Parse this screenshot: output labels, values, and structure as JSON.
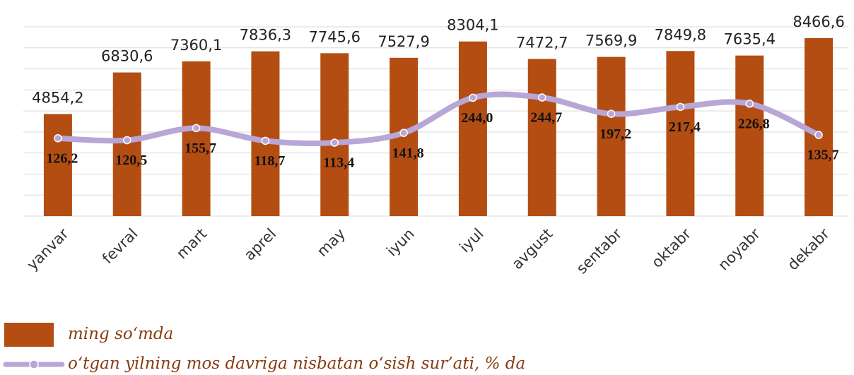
{
  "chart_data": {
    "type": "bar_line",
    "categories": [
      "yanvar",
      "fevral",
      "mart",
      "aprel",
      "may",
      "iyun",
      "iyul",
      "avgust",
      "sentabr",
      "oktabr",
      "noyabr",
      "dekabr"
    ],
    "series": [
      {
        "name": "ming so‘mda",
        "type": "bar",
        "color": "#b44d12",
        "values": [
          4854.2,
          6830.6,
          7360.1,
          7836.3,
          7745.6,
          7527.9,
          8304.1,
          7472.7,
          7569.9,
          7849.8,
          7635.4,
          8466.6
        ],
        "value_labels": [
          "4854,2",
          "6830,6",
          "7360,1",
          "7836,3",
          "7745,6",
          "7527,9",
          "8304,1",
          "7472,7",
          "7569,9",
          "7849,8",
          "7635,4",
          "8466,6"
        ]
      },
      {
        "name": "o‘tgan yilning mos davriga nisbatan o‘sish sur’ati, % da",
        "type": "line",
        "axis": "y2",
        "color": "#b8a6d6",
        "values": [
          126.2,
          120.5,
          155.7,
          118.7,
          113.4,
          141.8,
          244.0,
          244.7,
          197.2,
          217.4,
          226.8,
          135.7
        ],
        "value_labels": [
          "126,2",
          "120,5",
          "155,7",
          "118,7",
          "113,4",
          "141,8",
          "244,0",
          "244,7",
          "197,2",
          "217,4",
          "226,8",
          "135,7"
        ]
      }
    ],
    "ylim": [
      0,
      9000
    ],
    "yticks": [
      0,
      1000,
      2000,
      3000,
      4000,
      5000,
      6000,
      7000,
      8000,
      9000
    ],
    "y2lim": [
      -100,
      450
    ],
    "grid": true,
    "legend": "bottom-left"
  }
}
